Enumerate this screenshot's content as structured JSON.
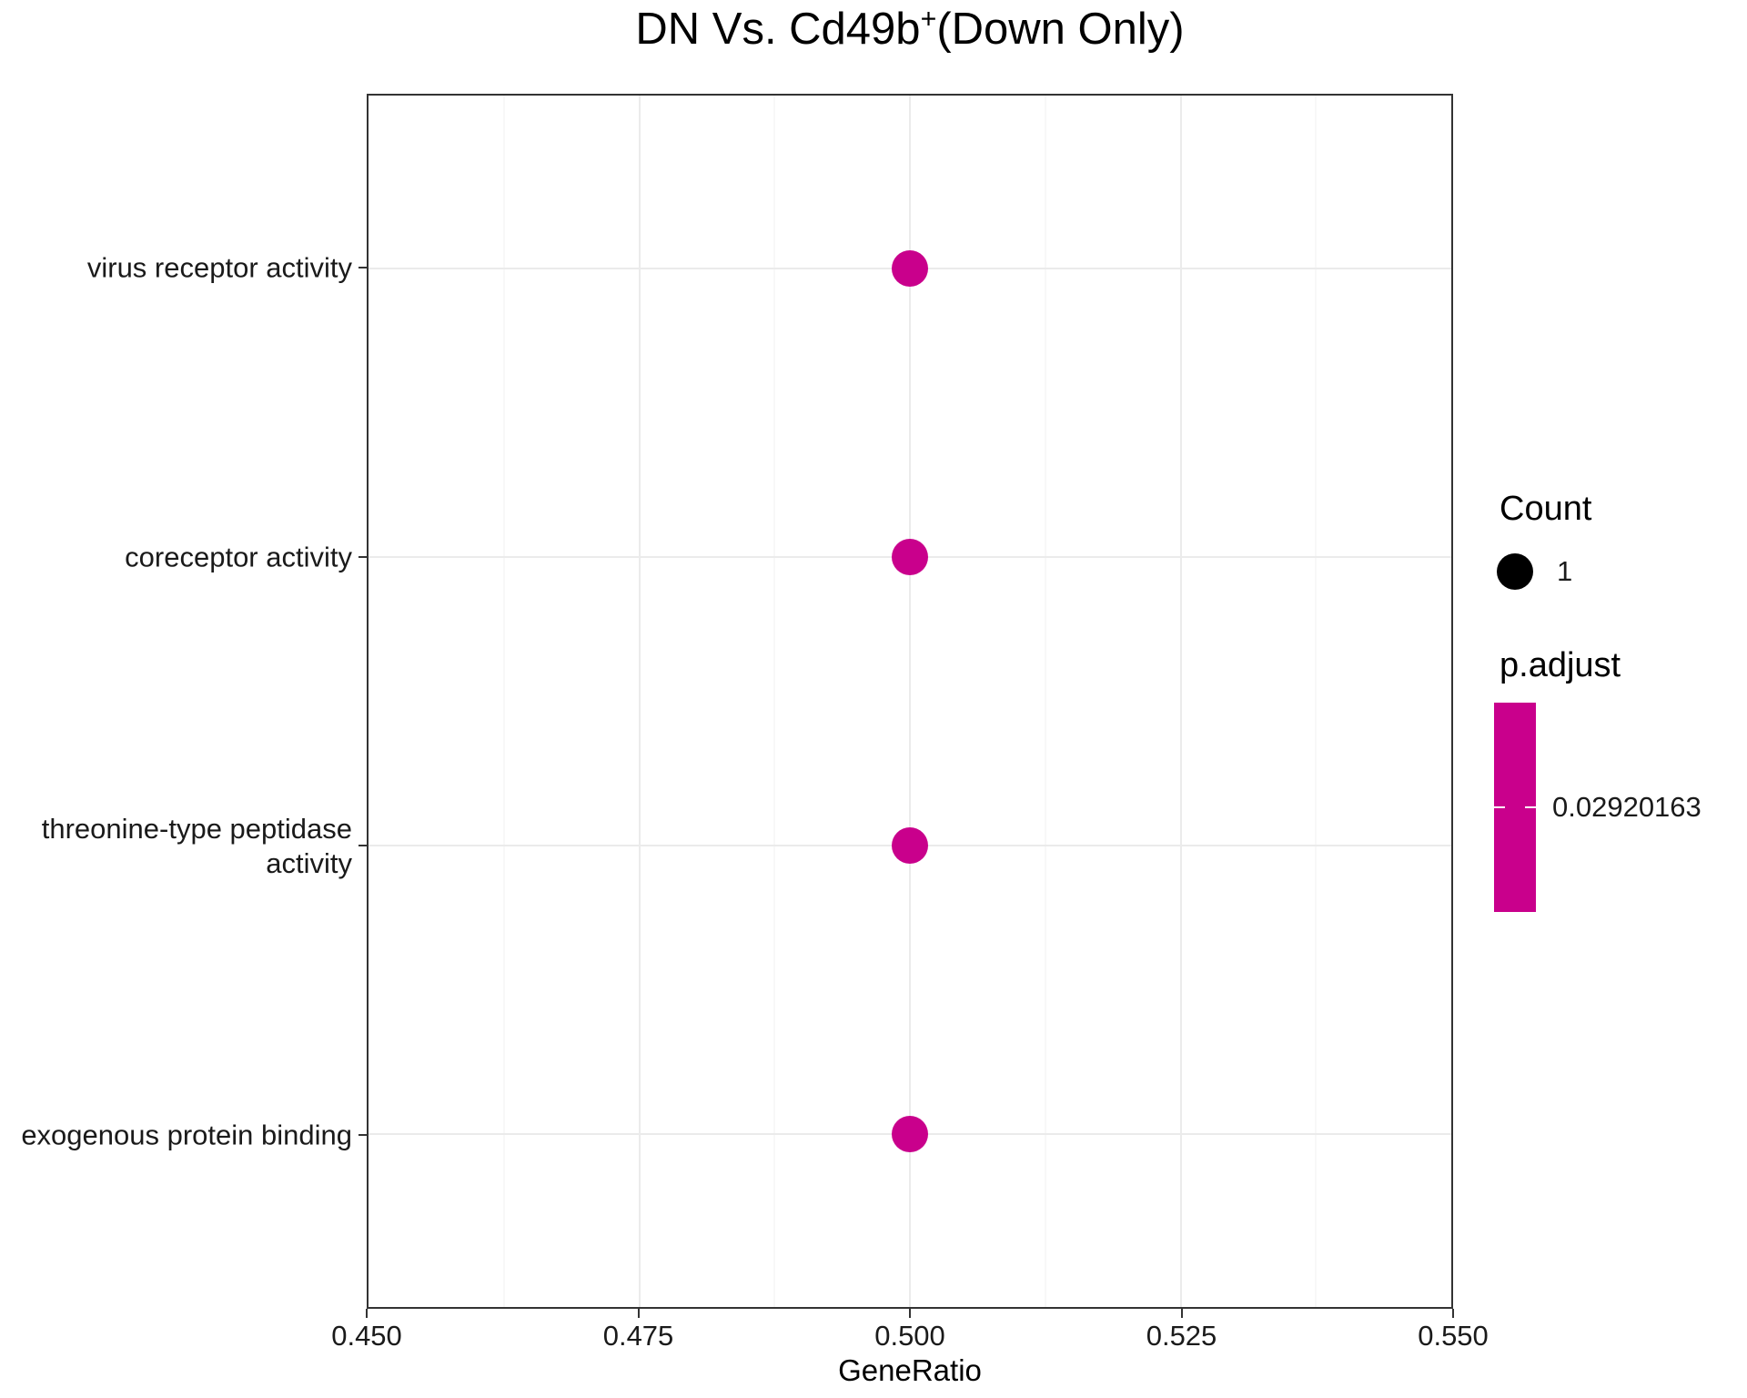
{
  "title": {
    "prefix": "DN Vs. Cd49b",
    "sup": "+",
    "suffix": "(Down Only)"
  },
  "axes": {
    "x_label": "GeneRatio",
    "x_tick_labels": [
      "0.450",
      "0.475",
      "0.500",
      "0.525",
      "0.550"
    ],
    "y_categories": [
      "virus receptor activity",
      "coreceptor activity",
      "threonine-type peptidase activity",
      "exogenous protein binding"
    ]
  },
  "legend": {
    "count_title": "Count",
    "count_items": [
      {
        "label": "1",
        "value": 1
      }
    ],
    "padjust_title": "p.adjust",
    "padjust_value_label": "0.02920163"
  },
  "colors": {
    "dot_magenta": "#C9008C",
    "count_dot_black": "#000000",
    "grid_major": "#EBEBEB",
    "grid_minor": "#F1F1F1",
    "panel_border": "#333333"
  },
  "chart_data": {
    "type": "scatter",
    "title": "DN Vs. Cd49b+(Down Only)",
    "xlabel": "GeneRatio",
    "ylabel": "",
    "xlim": [
      0.45,
      0.55
    ],
    "x_tick_values": [
      0.45,
      0.475,
      0.5,
      0.525,
      0.55
    ],
    "grid": true,
    "legend_position": "right",
    "categories": [
      "virus receptor activity",
      "coreceptor activity",
      "threonine-type peptidase activity",
      "exogenous protein binding"
    ],
    "points": [
      {
        "category": "virus receptor activity",
        "gene_ratio": 0.5,
        "count": 1,
        "p_adjust": 0.02920163
      },
      {
        "category": "coreceptor activity",
        "gene_ratio": 0.5,
        "count": 1,
        "p_adjust": 0.02920163
      },
      {
        "category": "threonine-type peptidase activity",
        "gene_ratio": 0.5,
        "count": 1,
        "p_adjust": 0.02920163
      },
      {
        "category": "exogenous protein binding",
        "gene_ratio": 0.5,
        "count": 1,
        "p_adjust": 0.02920163
      }
    ]
  }
}
